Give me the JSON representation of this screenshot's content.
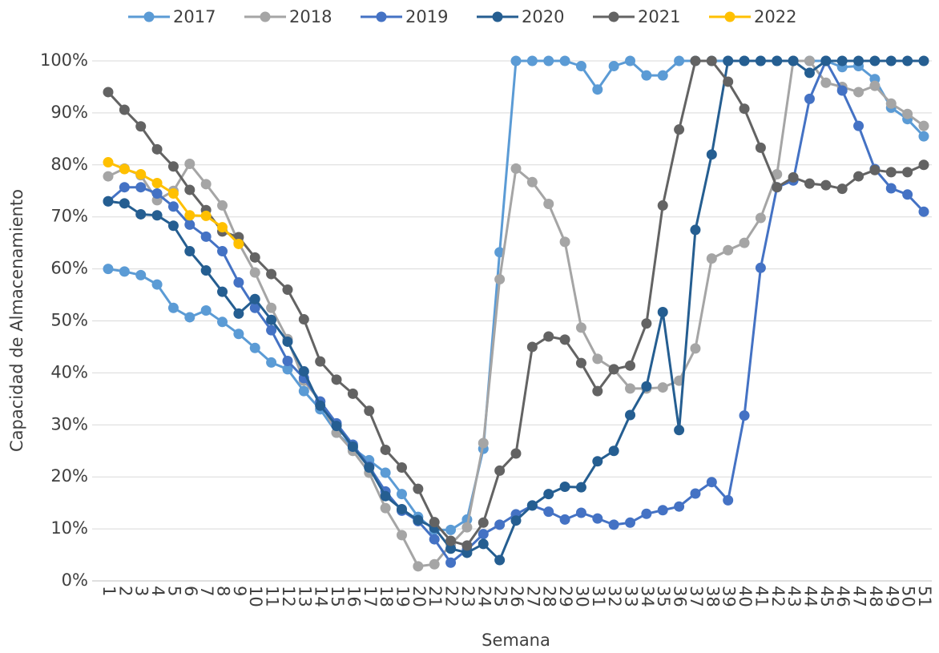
{
  "chart_data": {
    "type": "line",
    "x_label": "Semana",
    "y_label": "Capacidad de Almacenamiento",
    "categories": [
      "1",
      "2",
      "3",
      "4",
      "5",
      "6",
      "7",
      "8",
      "9",
      "10",
      "11",
      "12",
      "13",
      "14",
      "15",
      "16",
      "17",
      "18",
      "19",
      "20",
      "21",
      "22",
      "23",
      "24",
      "25",
      "26",
      "27",
      "28",
      "29",
      "30",
      "31",
      "32",
      "33",
      "34",
      "35",
      "36",
      "37",
      "38",
      "39",
      "40",
      "41",
      "42",
      "43",
      "44",
      "45",
      "46",
      "47",
      "48",
      "49",
      "50",
      "51"
    ],
    "ylim": [
      0,
      100
    ],
    "yticks": [
      {
        "value": 0,
        "label": "0%"
      },
      {
        "value": 10,
        "label": "10%"
      },
      {
        "value": 20,
        "label": "20%"
      },
      {
        "value": 30,
        "label": "30%"
      },
      {
        "value": 40,
        "label": "40%"
      },
      {
        "value": 50,
        "label": "50%"
      },
      {
        "value": 60,
        "label": "60%"
      },
      {
        "value": 70,
        "label": "70%"
      },
      {
        "value": 80,
        "label": "80%"
      },
      {
        "value": 90,
        "label": "90%"
      },
      {
        "value": 100,
        "label": "100%"
      }
    ],
    "grid": true,
    "legend": "top",
    "series": [
      {
        "name": "2017",
        "color": "#5b9bd5",
        "values": [
          60,
          59.5,
          58.8,
          57,
          52.5,
          50.7,
          52,
          49.8,
          47.5,
          44.8,
          42,
          40.7,
          36.5,
          33,
          28.5,
          25.5,
          23.2,
          20.8,
          16.7,
          12.3,
          9.8,
          9.8,
          11.8,
          25.4,
          63.2,
          100,
          100,
          100,
          100,
          99,
          94.5,
          99,
          100,
          97.2,
          97.2,
          100,
          100,
          100,
          100,
          100,
          100,
          100,
          100,
          100,
          100,
          98.8,
          99,
          96.5,
          91,
          88.8,
          85.5
        ]
      },
      {
        "name": "2018",
        "color": "#a5a5a5",
        "values": [
          77.8,
          79.3,
          78,
          73.2,
          75,
          80.2,
          76.3,
          72.2,
          65,
          59.3,
          52.5,
          46.5,
          38.5,
          34.5,
          28.5,
          25,
          20.8,
          14,
          8.8,
          2.8,
          3.2,
          7,
          10.3,
          26.5,
          58,
          79.3,
          76.7,
          72.5,
          65.2,
          48.7,
          42.7,
          40.7,
          37,
          37,
          37.2,
          38.5,
          44.7,
          62,
          63.6,
          65,
          69.8,
          78.2,
          100,
          100,
          95.8,
          95,
          94,
          95.2,
          91.8,
          89.8,
          87.5
        ]
      },
      {
        "name": "2019",
        "color": "#4472c4",
        "values": [
          73,
          75.7,
          75.7,
          74.5,
          72,
          68.5,
          66.2,
          63.4,
          57.4,
          52.5,
          48.2,
          42.3,
          39,
          34.5,
          30.3,
          26.2,
          22,
          17.2,
          13.5,
          11.5,
          8,
          3.5,
          6,
          9,
          10.8,
          12.8,
          14.5,
          13.3,
          11.8,
          13.1,
          12,
          10.8,
          11.2,
          12.9,
          13.6,
          14.3,
          16.8,
          19,
          15.5,
          31.8,
          60.2,
          75.7,
          77,
          92.7,
          100,
          94.3,
          87.5,
          79.2,
          75.5,
          74.3,
          71
        ]
      },
      {
        "name": "2020",
        "color": "#255e91",
        "values": [
          73,
          72.6,
          70.5,
          70.3,
          68.3,
          63.4,
          59.7,
          55.6,
          51.4,
          54.2,
          50.2,
          46,
          40.3,
          33.7,
          29.8,
          25.8,
          21.8,
          16.3,
          13.8,
          11.7,
          10.2,
          6.2,
          5.4,
          7.1,
          4,
          11.6,
          14.5,
          16.7,
          18.1,
          18,
          23,
          25,
          31.9,
          37.4,
          51.7,
          29,
          67.5,
          82,
          100,
          100,
          100,
          100,
          100,
          97.7,
          100,
          100,
          100,
          100,
          100,
          100,
          100
        ]
      },
      {
        "name": "2021",
        "color": "#636363",
        "values": [
          94,
          90.6,
          87.4,
          83,
          79.7,
          75.2,
          71.3,
          67.2,
          66.1,
          62.2,
          59,
          56,
          50.3,
          42.2,
          38.7,
          36,
          32.7,
          25.2,
          21.8,
          17.7,
          11.3,
          7.7,
          6.8,
          11.2,
          21.2,
          24.5,
          45,
          47,
          46.4,
          41.9,
          36.5,
          40.7,
          41.4,
          49.5,
          72.2,
          86.8,
          100,
          100,
          96,
          90.8,
          83.3,
          75.7,
          77.6,
          76.4,
          76.1,
          75.4,
          77.8,
          79,
          78.6,
          78.6,
          80
        ]
      },
      {
        "name": "2022",
        "color": "#ffc000",
        "values": [
          80.5,
          79.2,
          78.2,
          76.5,
          74.5,
          70.3,
          70.2,
          68,
          64.8,
          null,
          null,
          null,
          null,
          null,
          null,
          null,
          null,
          null,
          null,
          null,
          null,
          null,
          null,
          null,
          null,
          null,
          null,
          null,
          null,
          null,
          null,
          null,
          null,
          null,
          null,
          null,
          null,
          null,
          null,
          null,
          null,
          null,
          null,
          null,
          null,
          null,
          null,
          null,
          null,
          null,
          null
        ]
      }
    ]
  }
}
